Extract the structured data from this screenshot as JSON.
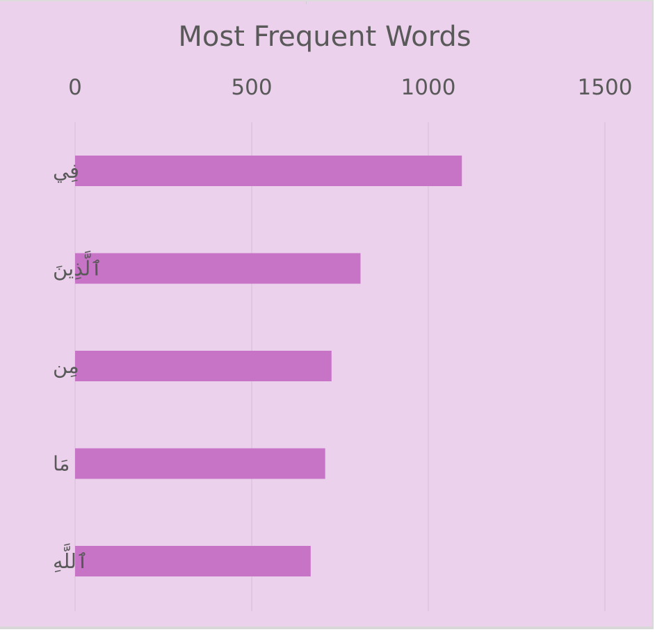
{
  "chart_data": {
    "type": "bar",
    "orientation": "horizontal",
    "title": "Most Frequent Words",
    "categories": [
      "فِي",
      "ٱلَّذِينَ",
      "مِن",
      "مَا",
      "ٱللَّهِ"
    ],
    "values": [
      1095,
      808,
      726,
      708,
      667
    ],
    "xlim": [
      0,
      1500
    ],
    "xticks": [
      "0",
      "500",
      "1000",
      "1500"
    ],
    "x_axis_position": "top",
    "grid": true,
    "legend": "none",
    "bar_color": "#c774c7",
    "background_color": "#ecd1ec",
    "gridline_color": "#dcc6dc",
    "text_color": "#595959"
  }
}
